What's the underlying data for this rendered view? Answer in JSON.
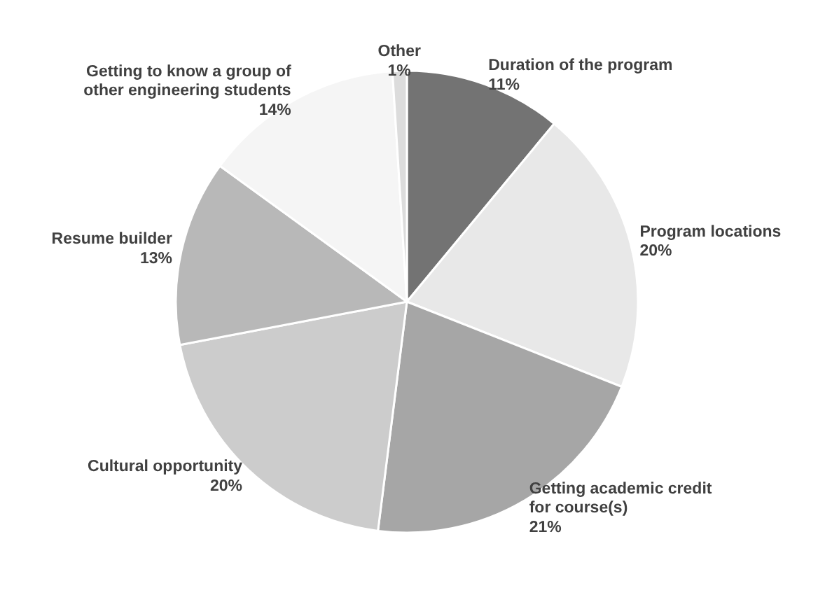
{
  "chart_data": {
    "type": "pie",
    "categories": [
      "Duration of the program",
      "Program locations",
      "Getting academic credit for course(s)",
      "Cultural opportunity",
      "Resume builder",
      "Getting to know a group of other engineering students",
      "Other"
    ],
    "values": [
      11,
      20,
      21,
      20,
      13,
      14,
      1
    ],
    "colors": [
      "#737373",
      "#e8e8e8",
      "#a6a6a6",
      "#cccccc",
      "#b8b8b8",
      "#f5f5f5",
      "#dcdcdc"
    ],
    "value_labels": [
      "11%",
      "20%",
      "21%",
      "20%",
      "13%",
      "14%",
      "1%"
    ]
  }
}
